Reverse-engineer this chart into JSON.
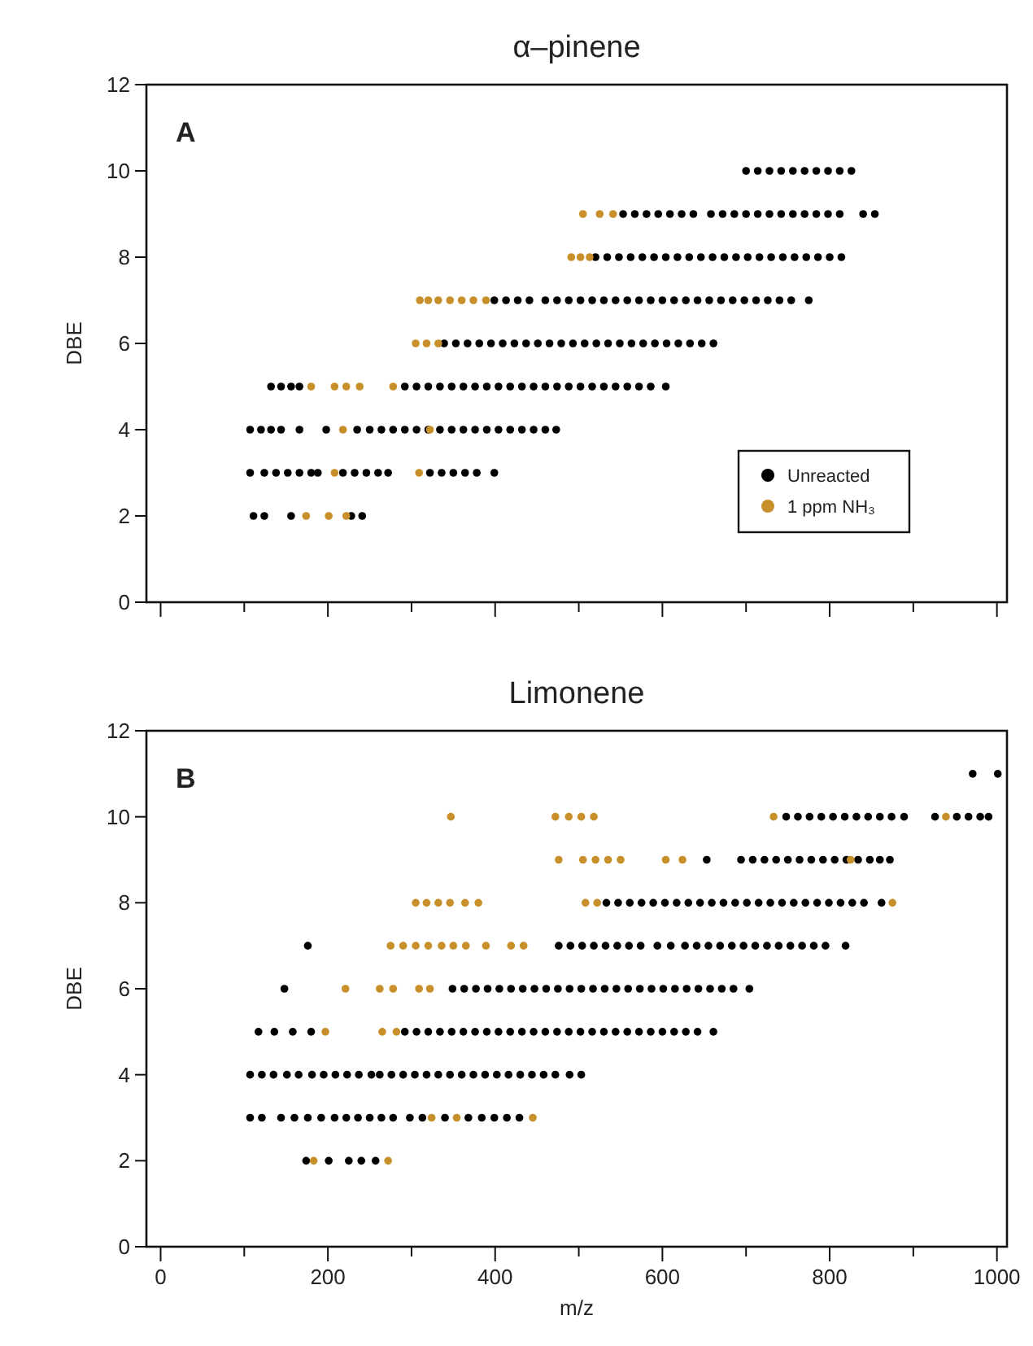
{
  "chart_data": [
    {
      "type": "scatter",
      "title": "α–pinene",
      "ylabel": "DBE",
      "annotations": [
        "A"
      ],
      "xlim": [
        -17,
        1012
      ],
      "ylim": [
        0,
        12
      ],
      "xticks": [
        {
          "value": 0,
          "label": null
        },
        {
          "value": 100,
          "label": null
        },
        {
          "value": 200,
          "label": null
        },
        {
          "value": 300,
          "label": null
        },
        {
          "value": 400,
          "label": null
        },
        {
          "value": 500,
          "label": null
        },
        {
          "value": 600,
          "label": null
        },
        {
          "value": 700,
          "label": null
        },
        {
          "value": 800,
          "label": null
        },
        {
          "value": 900,
          "label": null
        },
        {
          "value": 1000,
          "label": null
        }
      ],
      "yticks": [
        0,
        2,
        4,
        6,
        8,
        10,
        12
      ],
      "tick_labels": "y",
      "marker": "circle",
      "grid": false,
      "legend": "bottom right",
      "series": [
        {
          "name": "Unreacted",
          "color": "#000000",
          "x": [
            700,
            714,
            728,
            742,
            756,
            770,
            784,
            798,
            812,
            826,
            553,
            567,
            581,
            595,
            609,
            623,
            637,
            658,
            672,
            686,
            700,
            714,
            728,
            742,
            756,
            770,
            784,
            798,
            812,
            840,
            854,
            520,
            534,
            548,
            562,
            576,
            590,
            604,
            618,
            632,
            646,
            660,
            674,
            688,
            702,
            716,
            730,
            744,
            758,
            772,
            786,
            800,
            814,
            399,
            413,
            427,
            441,
            460,
            474,
            488,
            502,
            516,
            530,
            544,
            558,
            572,
            586,
            600,
            614,
            628,
            642,
            656,
            670,
            684,
            698,
            712,
            726,
            740,
            754,
            775,
            339,
            353,
            367,
            381,
            395,
            409,
            423,
            437,
            451,
            465,
            479,
            493,
            507,
            521,
            535,
            549,
            563,
            577,
            591,
            605,
            619,
            633,
            647,
            661,
            132,
            144,
            156,
            166,
            292,
            306,
            320,
            334,
            348,
            362,
            376,
            390,
            404,
            418,
            432,
            446,
            460,
            474,
            488,
            502,
            516,
            530,
            544,
            558,
            572,
            586,
            604,
            107,
            120,
            132,
            144,
            166,
            198,
            235,
            250,
            264,
            278,
            292,
            306,
            320,
            334,
            348,
            362,
            376,
            390,
            404,
            418,
            432,
            446,
            460,
            473,
            107,
            124,
            138,
            152,
            166,
            180,
            188,
            218,
            232,
            246,
            260,
            272,
            322,
            336,
            350,
            364,
            378,
            399,
            111,
            124,
            156,
            228,
            241
          ],
          "values": [
            10,
            10,
            10,
            10,
            10,
            10,
            10,
            10,
            10,
            10,
            9,
            9,
            9,
            9,
            9,
            9,
            9,
            9,
            9,
            9,
            9,
            9,
            9,
            9,
            9,
            9,
            9,
            9,
            9,
            9,
            9,
            8,
            8,
            8,
            8,
            8,
            8,
            8,
            8,
            8,
            8,
            8,
            8,
            8,
            8,
            8,
            8,
            8,
            8,
            8,
            8,
            8,
            8,
            7,
            7,
            7,
            7,
            7,
            7,
            7,
            7,
            7,
            7,
            7,
            7,
            7,
            7,
            7,
            7,
            7,
            7,
            7,
            7,
            7,
            7,
            7,
            7,
            7,
            7,
            7,
            6,
            6,
            6,
            6,
            6,
            6,
            6,
            6,
            6,
            6,
            6,
            6,
            6,
            6,
            6,
            6,
            6,
            6,
            6,
            6,
            6,
            6,
            6,
            6,
            5,
            5,
            5,
            5,
            5,
            5,
            5,
            5,
            5,
            5,
            5,
            5,
            5,
            5,
            5,
            5,
            5,
            5,
            5,
            5,
            5,
            5,
            5,
            5,
            5,
            5,
            5,
            4,
            4,
            4,
            4,
            4,
            4,
            4,
            4,
            4,
            4,
            4,
            4,
            4,
            4,
            4,
            4,
            4,
            4,
            4,
            4,
            4,
            4,
            4,
            4,
            3,
            3,
            3,
            3,
            3,
            3,
            3,
            3,
            3,
            3,
            3,
            3,
            3,
            3,
            3,
            3,
            3,
            3,
            2,
            2,
            2,
            2,
            2
          ]
        },
        {
          "name": "1 ppm NH₃",
          "color": "#c8902a",
          "x": [
            505,
            525,
            541,
            491,
            502,
            513,
            310,
            320,
            332,
            346,
            360,
            374,
            389,
            305,
            318,
            332,
            180,
            208,
            222,
            238,
            278,
            218,
            322,
            208,
            309,
            174,
            201,
            222
          ],
          "values": [
            9,
            9,
            9,
            8,
            8,
            8,
            7,
            7,
            7,
            7,
            7,
            7,
            7,
            6,
            6,
            6,
            5,
            5,
            5,
            5,
            5,
            4,
            4,
            3,
            3,
            2,
            2,
            2
          ]
        }
      ]
    },
    {
      "type": "scatter",
      "title": "Limonene",
      "xlabel": "m/z",
      "ylabel": "DBE",
      "annotations": [
        "B"
      ],
      "xlim": [
        -17,
        1012
      ],
      "ylim": [
        0,
        12
      ],
      "xticks": [
        0,
        {
          "value": 100,
          "label": null
        },
        200,
        {
          "value": 300,
          "label": null
        },
        400,
        {
          "value": 500,
          "label": null
        },
        600,
        {
          "value": 700,
          "label": null
        },
        800,
        {
          "value": 900,
          "label": null
        },
        1000
      ],
      "yticks": [
        0,
        2,
        4,
        6,
        8,
        10,
        12
      ],
      "marker": "circle",
      "grid": false,
      "legend": false,
      "series": [
        {
          "color": "#000000",
          "x": [
            971,
            1001,
            748,
            762,
            776,
            790,
            804,
            818,
            832,
            846,
            860,
            874,
            889,
            926,
            952,
            966,
            980,
            990,
            653,
            694,
            708,
            722,
            736,
            750,
            764,
            778,
            792,
            806,
            820,
            834,
            848,
            860,
            872,
            533,
            547,
            561,
            575,
            589,
            603,
            617,
            631,
            645,
            659,
            673,
            687,
            701,
            715,
            729,
            743,
            757,
            771,
            785,
            799,
            813,
            827,
            841,
            862,
            176,
            476,
            490,
            504,
            518,
            532,
            546,
            560,
            574,
            594,
            610,
            627,
            641,
            655,
            669,
            683,
            697,
            711,
            725,
            739,
            753,
            767,
            781,
            795,
            819,
            148,
            349,
            363,
            377,
            391,
            405,
            419,
            433,
            447,
            461,
            475,
            489,
            503,
            517,
            531,
            545,
            559,
            573,
            587,
            601,
            615,
            629,
            643,
            657,
            671,
            685,
            704,
            117,
            136,
            158,
            180,
            292,
            306,
            320,
            334,
            348,
            362,
            376,
            390,
            404,
            418,
            432,
            446,
            460,
            474,
            488,
            502,
            516,
            530,
            544,
            558,
            572,
            586,
            600,
            614,
            628,
            642,
            661,
            107,
            121,
            135,
            151,
            165,
            181,
            195,
            209,
            223,
            237,
            252,
            262,
            276,
            290,
            304,
            318,
            332,
            346,
            360,
            374,
            388,
            402,
            416,
            430,
            444,
            458,
            472,
            489,
            503,
            107,
            121,
            144,
            160,
            176,
            192,
            208,
            222,
            236,
            250,
            264,
            278,
            298,
            313,
            340,
            368,
            384,
            399,
            414,
            429,
            174,
            201,
            225,
            240,
            257
          ],
          "values": [
            11,
            11,
            10,
            10,
            10,
            10,
            10,
            10,
            10,
            10,
            10,
            10,
            10,
            10,
            10,
            10,
            10,
            10,
            9,
            9,
            9,
            9,
            9,
            9,
            9,
            9,
            9,
            9,
            9,
            9,
            9,
            9,
            9,
            8,
            8,
            8,
            8,
            8,
            8,
            8,
            8,
            8,
            8,
            8,
            8,
            8,
            8,
            8,
            8,
            8,
            8,
            8,
            8,
            8,
            8,
            8,
            8,
            7,
            7,
            7,
            7,
            7,
            7,
            7,
            7,
            7,
            7,
            7,
            7,
            7,
            7,
            7,
            7,
            7,
            7,
            7,
            7,
            7,
            7,
            7,
            7,
            7,
            6,
            6,
            6,
            6,
            6,
            6,
            6,
            6,
            6,
            6,
            6,
            6,
            6,
            6,
            6,
            6,
            6,
            6,
            6,
            6,
            6,
            6,
            6,
            6,
            6,
            6,
            6,
            5,
            5,
            5,
            5,
            5,
            5,
            5,
            5,
            5,
            5,
            5,
            5,
            5,
            5,
            5,
            5,
            5,
            5,
            5,
            5,
            5,
            5,
            5,
            5,
            5,
            5,
            5,
            5,
            5,
            5,
            5,
            4,
            4,
            4,
            4,
            4,
            4,
            4,
            4,
            4,
            4,
            4,
            4,
            4,
            4,
            4,
            4,
            4,
            4,
            4,
            4,
            4,
            4,
            4,
            4,
            4,
            4,
            4,
            4,
            4,
            3,
            3,
            3,
            3,
            3,
            3,
            3,
            3,
            3,
            3,
            3,
            3,
            3,
            3,
            3,
            3,
            3,
            3,
            3,
            3,
            2,
            2,
            2,
            2,
            2
          ]
        },
        {
          "color": "#c8902a",
          "x": [
            347,
            472,
            488,
            503,
            518,
            733,
            939,
            476,
            505,
            520,
            535,
            550,
            604,
            624,
            825,
            305,
            318,
            332,
            346,
            364,
            380,
            508,
            522,
            875,
            275,
            290,
            305,
            320,
            336,
            350,
            365,
            389,
            419,
            434,
            221,
            262,
            278,
            309,
            322,
            197,
            265,
            282,
            324,
            354,
            445,
            183,
            272
          ],
          "values": [
            10,
            10,
            10,
            10,
            10,
            10,
            10,
            9,
            9,
            9,
            9,
            9,
            9,
            9,
            9,
            8,
            8,
            8,
            8,
            8,
            8,
            8,
            8,
            8,
            7,
            7,
            7,
            7,
            7,
            7,
            7,
            7,
            7,
            7,
            6,
            6,
            6,
            6,
            6,
            5,
            5,
            5,
            3,
            3,
            3,
            2,
            2
          ]
        }
      ]
    }
  ]
}
